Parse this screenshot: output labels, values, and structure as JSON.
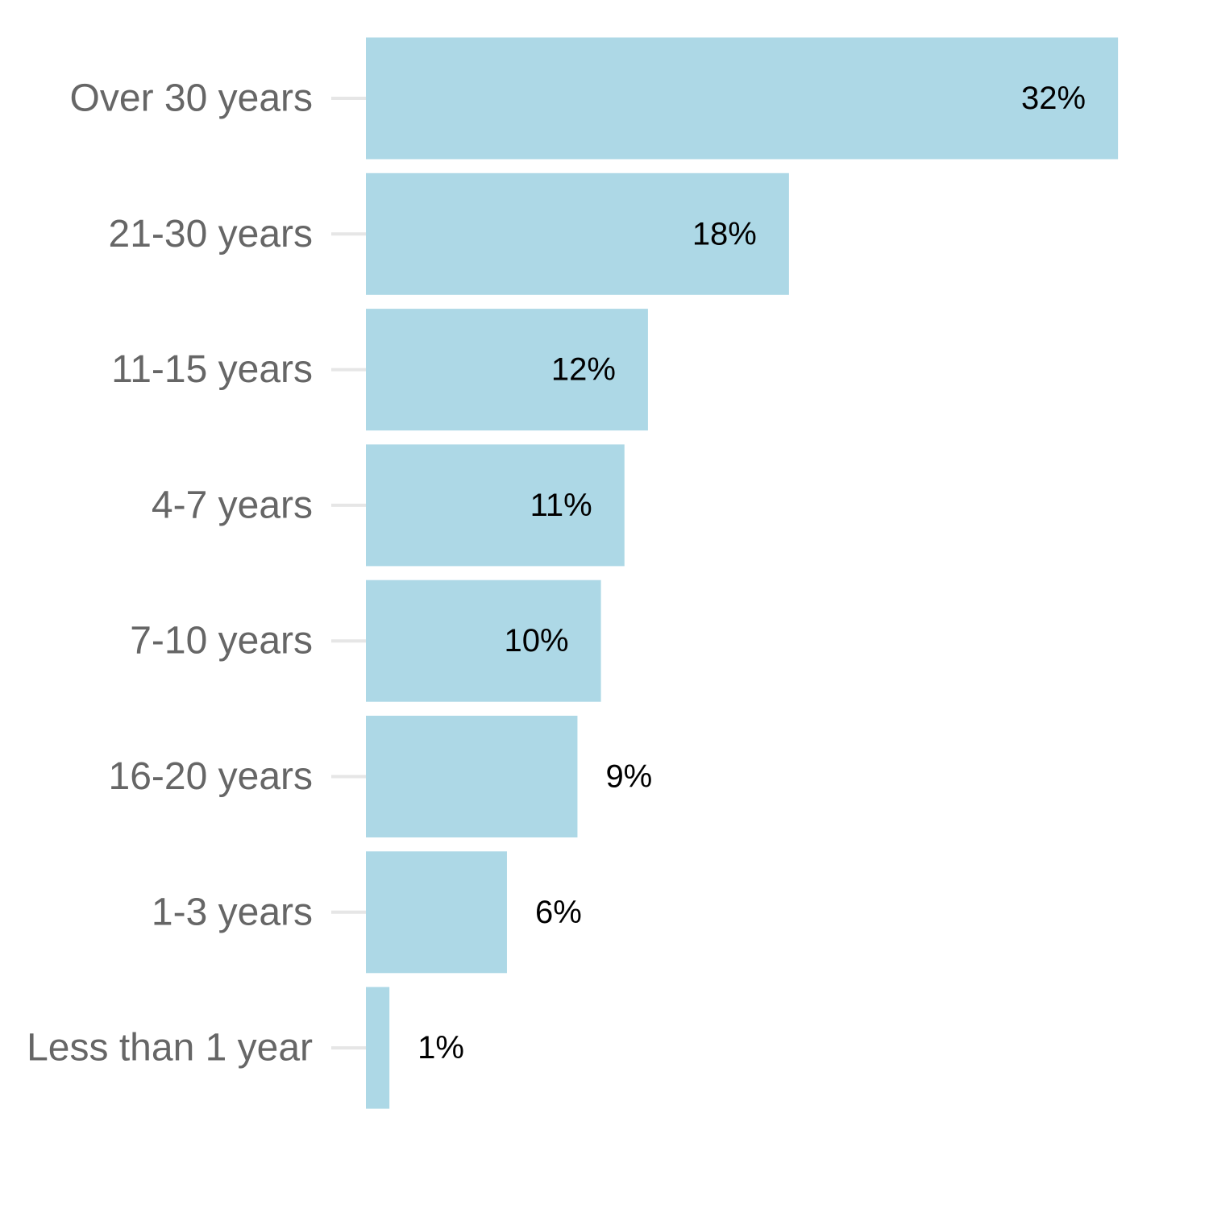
{
  "chart_data": {
    "type": "bar",
    "orientation": "horizontal",
    "title": "",
    "xlabel": "",
    "ylabel": "",
    "categories": [
      "Over 30 years",
      "21-30 years",
      "11-15 years",
      "4-7 years",
      "7-10 years",
      "16-20 years",
      "1-3 years",
      "Less than 1 year"
    ],
    "values": [
      32,
      18,
      12,
      11,
      10,
      9,
      6,
      1
    ],
    "value_labels": [
      "32%",
      "18%",
      "12%",
      "11%",
      "10%",
      "9%",
      "6%",
      "1%"
    ],
    "xlim": [
      0,
      33
    ],
    "grid": false,
    "legend": "none",
    "bar_color": "#add8e6",
    "label_color": "#000000",
    "category_color": "#666666"
  }
}
